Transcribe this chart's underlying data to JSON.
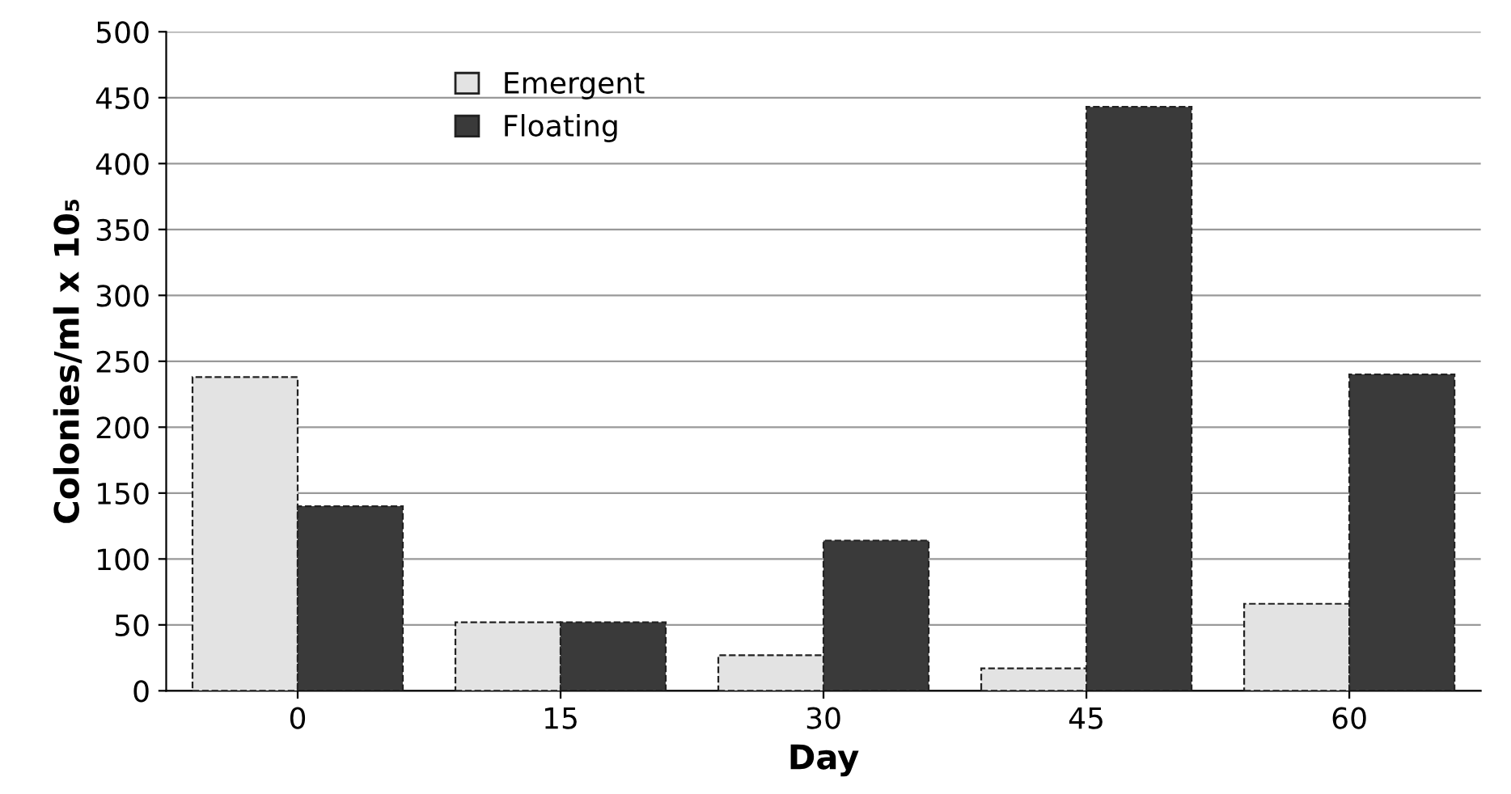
{
  "chart_data": {
    "type": "bar",
    "xlabel": "Day",
    "ylabel": "Colonies/ml x 10₅",
    "categories": [
      "0",
      "15",
      "30",
      "45",
      "60"
    ],
    "series": [
      {
        "name": "Emergent",
        "color": "#e3e3e3",
        "values": [
          238,
          52,
          27,
          17,
          66
        ]
      },
      {
        "name": "Floating",
        "color": "#3a3a3a",
        "values": [
          140,
          52,
          114,
          443,
          240
        ]
      }
    ],
    "ylim": [
      0,
      500
    ],
    "yticks": [
      0,
      50,
      100,
      150,
      200,
      250,
      300,
      350,
      400,
      450,
      500
    ],
    "grid": "y",
    "legend": "top left"
  }
}
